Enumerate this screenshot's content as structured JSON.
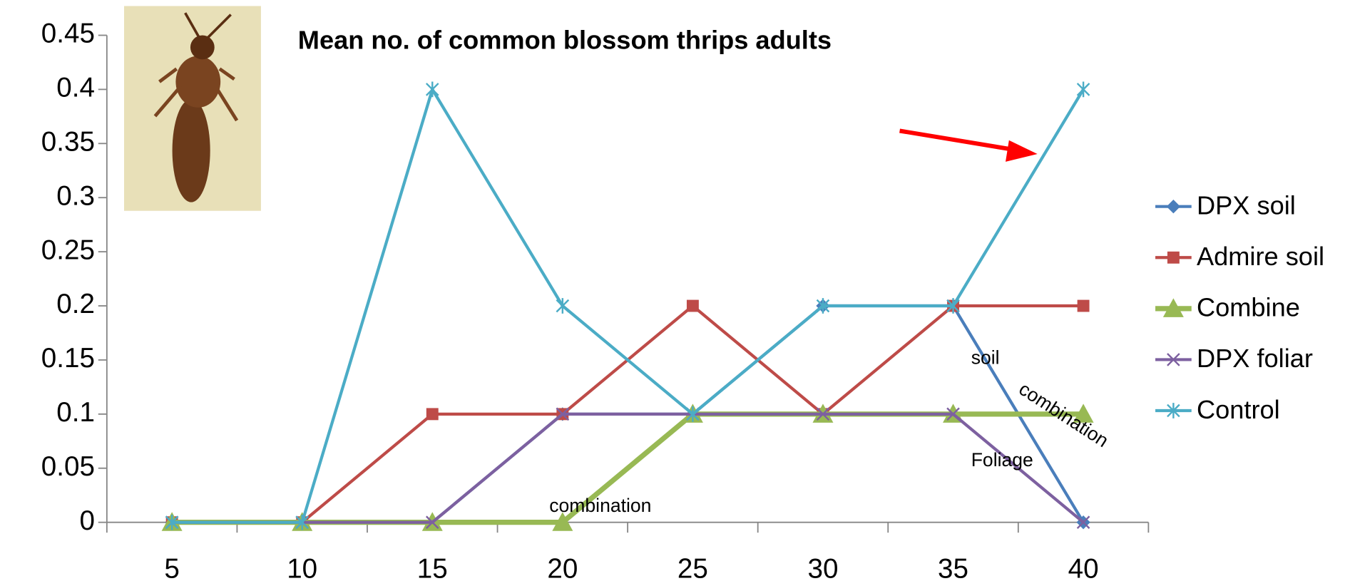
{
  "chart_data": {
    "type": "line",
    "title": "Mean no. of common blossom thrips adults",
    "categories": [
      5,
      10,
      15,
      20,
      25,
      30,
      35,
      40
    ],
    "series": [
      {
        "name": "DPX soil",
        "color": "#4a7ebb",
        "marker": "diamond",
        "values": [
          0,
          0,
          0,
          0.1,
          0.1,
          0.2,
          0.2,
          0
        ]
      },
      {
        "name": "Admire soil",
        "color": "#be4b48",
        "marker": "square",
        "values": [
          0,
          0,
          0.1,
          0.1,
          0.2,
          0.1,
          0.2,
          0.2
        ]
      },
      {
        "name": "Combine",
        "color": "#98b954",
        "marker": "triangle",
        "values": [
          0,
          0,
          0,
          0,
          0.1,
          0.1,
          0.1,
          0.1
        ]
      },
      {
        "name": "DPX foliar",
        "color": "#7d60a0",
        "marker": "x",
        "values": [
          0,
          0,
          0,
          0.1,
          0.1,
          0.1,
          0.1,
          0
        ]
      },
      {
        "name": "Control",
        "color": "#4bacc6",
        "marker": "star",
        "values": [
          0,
          0,
          0.4,
          0.2,
          0.1,
          0.2,
          0.2,
          0.4
        ]
      }
    ],
    "ylim": [
      0,
      0.45
    ],
    "yticks": [
      0,
      0.05,
      0.1,
      0.15,
      0.2,
      0.25,
      0.3,
      0.35,
      0.4,
      0.45
    ],
    "legend": "right",
    "annotations": [
      "soil",
      "combination",
      "Foliage",
      "combination"
    ]
  }
}
